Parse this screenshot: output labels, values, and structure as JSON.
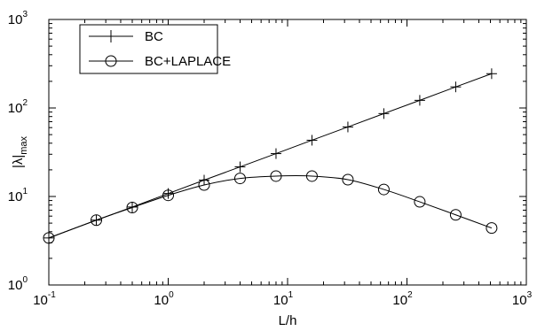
{
  "chart_data": {
    "type": "line",
    "x_scale": "log",
    "y_scale": "log",
    "xlim": [
      0.1,
      1000
    ],
    "ylim": [
      1,
      1000
    ],
    "xlabel": "L/h",
    "ylabel": {
      "base": "|λ|",
      "subscript": "max"
    },
    "x_ticks": [
      {
        "value": 0.1,
        "base": "10",
        "exp": "-1"
      },
      {
        "value": 1,
        "base": "10",
        "exp": "0"
      },
      {
        "value": 10,
        "base": "10",
        "exp": "1"
      },
      {
        "value": 100,
        "base": "10",
        "exp": "2"
      },
      {
        "value": 1000,
        "base": "10",
        "exp": "3"
      }
    ],
    "y_ticks": [
      {
        "value": 1,
        "base": "10",
        "exp": "0"
      },
      {
        "value": 10,
        "base": "10",
        "exp": "1"
      },
      {
        "value": 100,
        "base": "10",
        "exp": "2"
      },
      {
        "value": 1000,
        "base": "10",
        "exp": "3"
      }
    ],
    "grid": false,
    "legend_position": "top-left",
    "series": [
      {
        "name": "BC",
        "marker": "plus",
        "x": [
          0.1,
          0.25,
          0.5,
          1,
          2,
          4,
          8,
          16,
          32,
          64,
          128,
          256,
          512
        ],
        "y": [
          3.4,
          5.4,
          7.6,
          10.8,
          15.3,
          21.6,
          30.5,
          43.2,
          61,
          86.4,
          122,
          173,
          244
        ]
      },
      {
        "name": "BC+LAPLACE",
        "marker": "circle",
        "x": [
          0.1,
          0.25,
          0.5,
          1,
          2,
          4,
          8,
          16,
          32,
          64,
          128,
          256,
          512
        ],
        "y": [
          3.4,
          5.4,
          7.5,
          10.3,
          13.5,
          16.0,
          17.0,
          17.0,
          15.5,
          12.0,
          8.7,
          6.2,
          4.4
        ]
      }
    ]
  }
}
